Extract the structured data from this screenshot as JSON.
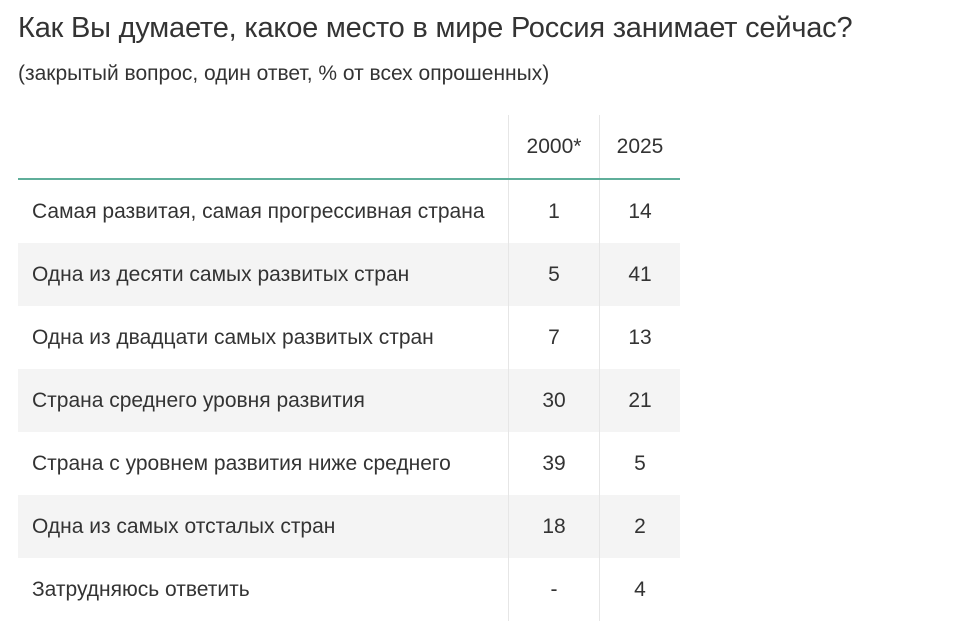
{
  "title": "Как Вы думаете, какое место в мире Россия занимает сейчас?",
  "subtitle": "(закрытый вопрос, один ответ, % от всех опрошенных)",
  "table": {
    "headers": [
      "",
      "2000*",
      "2025"
    ],
    "rows": [
      {
        "label": "Самая развитая, самая прогрессивная страна",
        "y2000": "1",
        "y2025": "14"
      },
      {
        "label": "Одна из десяти самых развитых стран",
        "y2000": "5",
        "y2025": "41"
      },
      {
        "label": "Одна из двадцати самых развитых стран",
        "y2000": "7",
        "y2025": "13"
      },
      {
        "label": "Страна среднего уровня развития",
        "y2000": "30",
        "y2025": "21"
      },
      {
        "label": "Страна с уровнем развития ниже среднего",
        "y2000": "39",
        "y2025": "5"
      },
      {
        "label": "Одна из самых отсталых стран",
        "y2000": "18",
        "y2025": "2"
      },
      {
        "label": "Затрудняюсь ответить",
        "y2000": "-",
        "y2025": "4"
      }
    ]
  },
  "colors": {
    "header_rule": "#5fae9a",
    "stripe": "#f4f4f4",
    "text": "#333333"
  }
}
